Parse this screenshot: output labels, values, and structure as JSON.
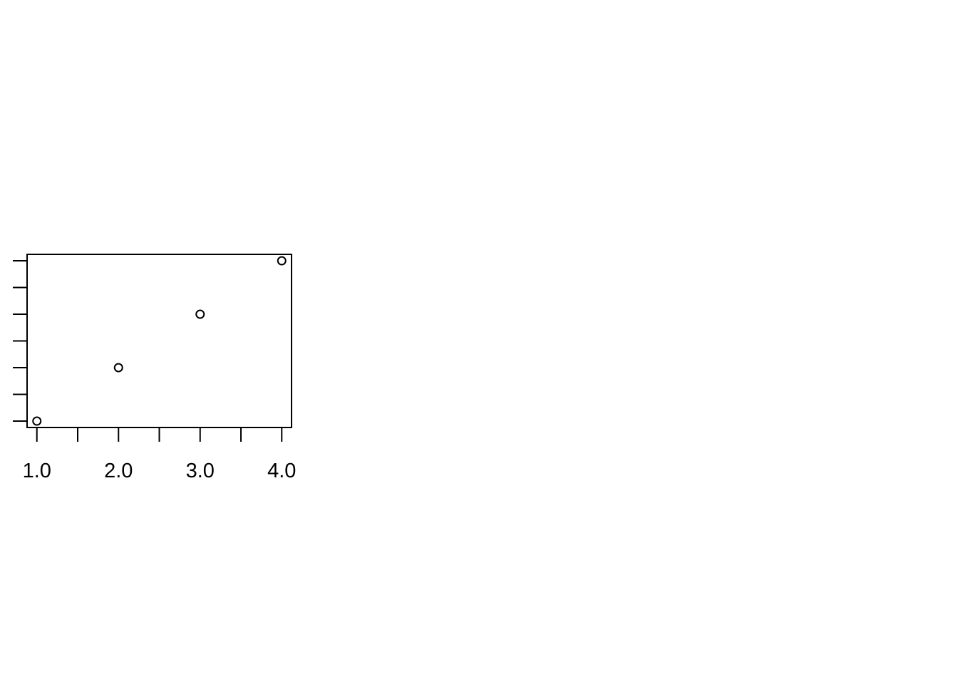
{
  "chart_data": {
    "type": "scatter",
    "title": "",
    "xlabel": "",
    "ylabel": "",
    "x": [
      1,
      2,
      3,
      4
    ],
    "y": [
      1,
      2,
      3,
      4
    ],
    "xlim": [
      0.88,
      4.12
    ],
    "ylim": [
      0.88,
      4.12
    ],
    "x_ticks": [
      1.0,
      1.5,
      2.0,
      2.5,
      3.0,
      3.5,
      4.0
    ],
    "x_tick_labels": [
      "1.0",
      "2.0",
      "3.0",
      "4.0"
    ],
    "y_ticks": [
      1.0,
      1.5,
      2.0,
      2.5,
      3.0,
      3.5,
      4.0
    ],
    "y_tick_labels_shown": false,
    "marker": "open-circle",
    "grid": false,
    "legend": "none",
    "colors": {
      "background": "#ffffff",
      "foreground": "#000000"
    }
  }
}
